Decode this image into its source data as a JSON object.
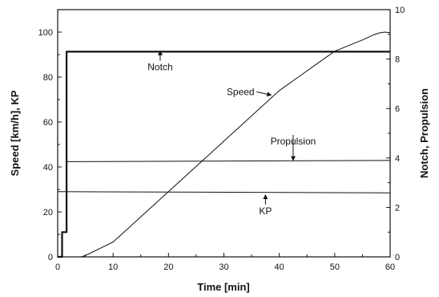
{
  "chart_data": {
    "type": "line",
    "xlabel": "Time [min]",
    "ylabel_left": "Speed [km/h], KP",
    "ylabel_right": "Notch, Propulsion",
    "xlim": [
      0,
      60
    ],
    "ylim_left": [
      0,
      110
    ],
    "ylim_right": [
      0,
      10
    ],
    "x_ticks": [
      0,
      10,
      20,
      30,
      40,
      50,
      60
    ],
    "y_ticks_left": [
      0,
      20,
      40,
      60,
      80,
      100
    ],
    "y_ticks_right": [
      0,
      2,
      4,
      6,
      8,
      10
    ],
    "grid": false,
    "series": [
      {
        "name": "Speed",
        "axis": "left",
        "x": [
          0,
          4.2,
          5,
          6,
          10,
          20,
          30,
          40,
          50,
          55,
          57,
          58,
          59,
          60
        ],
        "y": [
          0,
          0,
          0.6,
          1.8,
          6.6,
          29,
          51.5,
          74,
          91.5,
          96.5,
          98.8,
          99.6,
          100,
          99.7
        ]
      },
      {
        "name": "Notch",
        "axis": "right",
        "x": [
          0,
          0.8,
          0.8,
          1.6,
          1.6,
          60
        ],
        "y": [
          0,
          0,
          1,
          1,
          8.3,
          8.3
        ]
      },
      {
        "name": "Propulsion",
        "axis": "right",
        "x": [
          1.6,
          60
        ],
        "y": [
          3.85,
          3.9
        ]
      },
      {
        "name": "KP",
        "axis": "left",
        "x": [
          0,
          60
        ],
        "y": [
          29,
          28.5
        ]
      }
    ],
    "annotations": [
      {
        "text": "Notch",
        "x": 18.5,
        "y": 83,
        "arrow_to": [
          18.5,
          91.5
        ]
      },
      {
        "text": "Speed",
        "x": 33,
        "y": 72,
        "arrow_to": [
          38.5,
          72
        ]
      },
      {
        "text": "Propulsion",
        "x": 42.5,
        "y": 50,
        "arrow_to": [
          42.5,
          43
        ]
      },
      {
        "text": "KP",
        "x": 37.5,
        "y": 19,
        "arrow_to": [
          37.5,
          27.5
        ]
      }
    ]
  }
}
